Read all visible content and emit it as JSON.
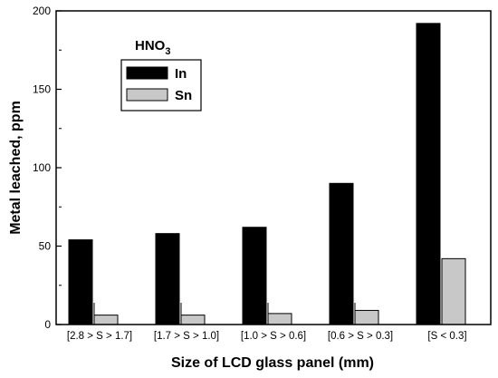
{
  "chart_data": {
    "type": "bar",
    "annotation": {
      "base": "HNO",
      "subscript": "3"
    },
    "xlabel": "Size of LCD glass panel (mm)",
    "ylabel": "Metal leached, ppm",
    "ylim": [
      0,
      200
    ],
    "yticks": [
      "0",
      "50",
      "100",
      "150",
      "200"
    ],
    "categories": [
      "[2.8 > S > 1.7]",
      "[1.7 > S > 1.0]",
      "[1.0 > S > 0.6]",
      "[0.6 > S > 0.3]",
      "[S <  0.3]"
    ],
    "series": [
      {
        "name": "In",
        "color": "#000000",
        "values": [
          54,
          58,
          62,
          90,
          192
        ]
      },
      {
        "name": "Sn",
        "color": "#c8c8c8",
        "values": [
          6,
          6,
          7,
          9,
          42
        ]
      }
    ],
    "legend_position": "top-left",
    "grid": false
  }
}
